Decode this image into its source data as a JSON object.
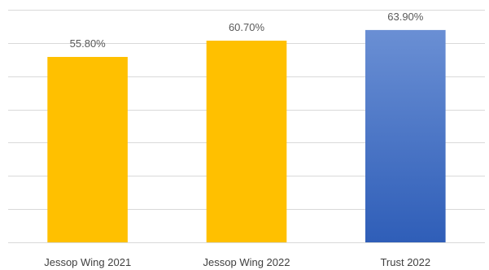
{
  "chart_data": {
    "type": "bar",
    "categories": [
      "Jessop Wing 2021",
      "Jessop Wing 2022",
      "Trust 2022"
    ],
    "values": [
      55.8,
      60.7,
      63.9
    ],
    "data_labels": [
      "55.80%",
      "60.70%",
      "63.90%"
    ],
    "bar_colors": [
      "#ffc000",
      "#ffc000",
      "#4472c4"
    ],
    "ylim": [
      0,
      70
    ],
    "grid": true,
    "legend": "none",
    "title": "",
    "xlabel": "",
    "ylabel": ""
  }
}
